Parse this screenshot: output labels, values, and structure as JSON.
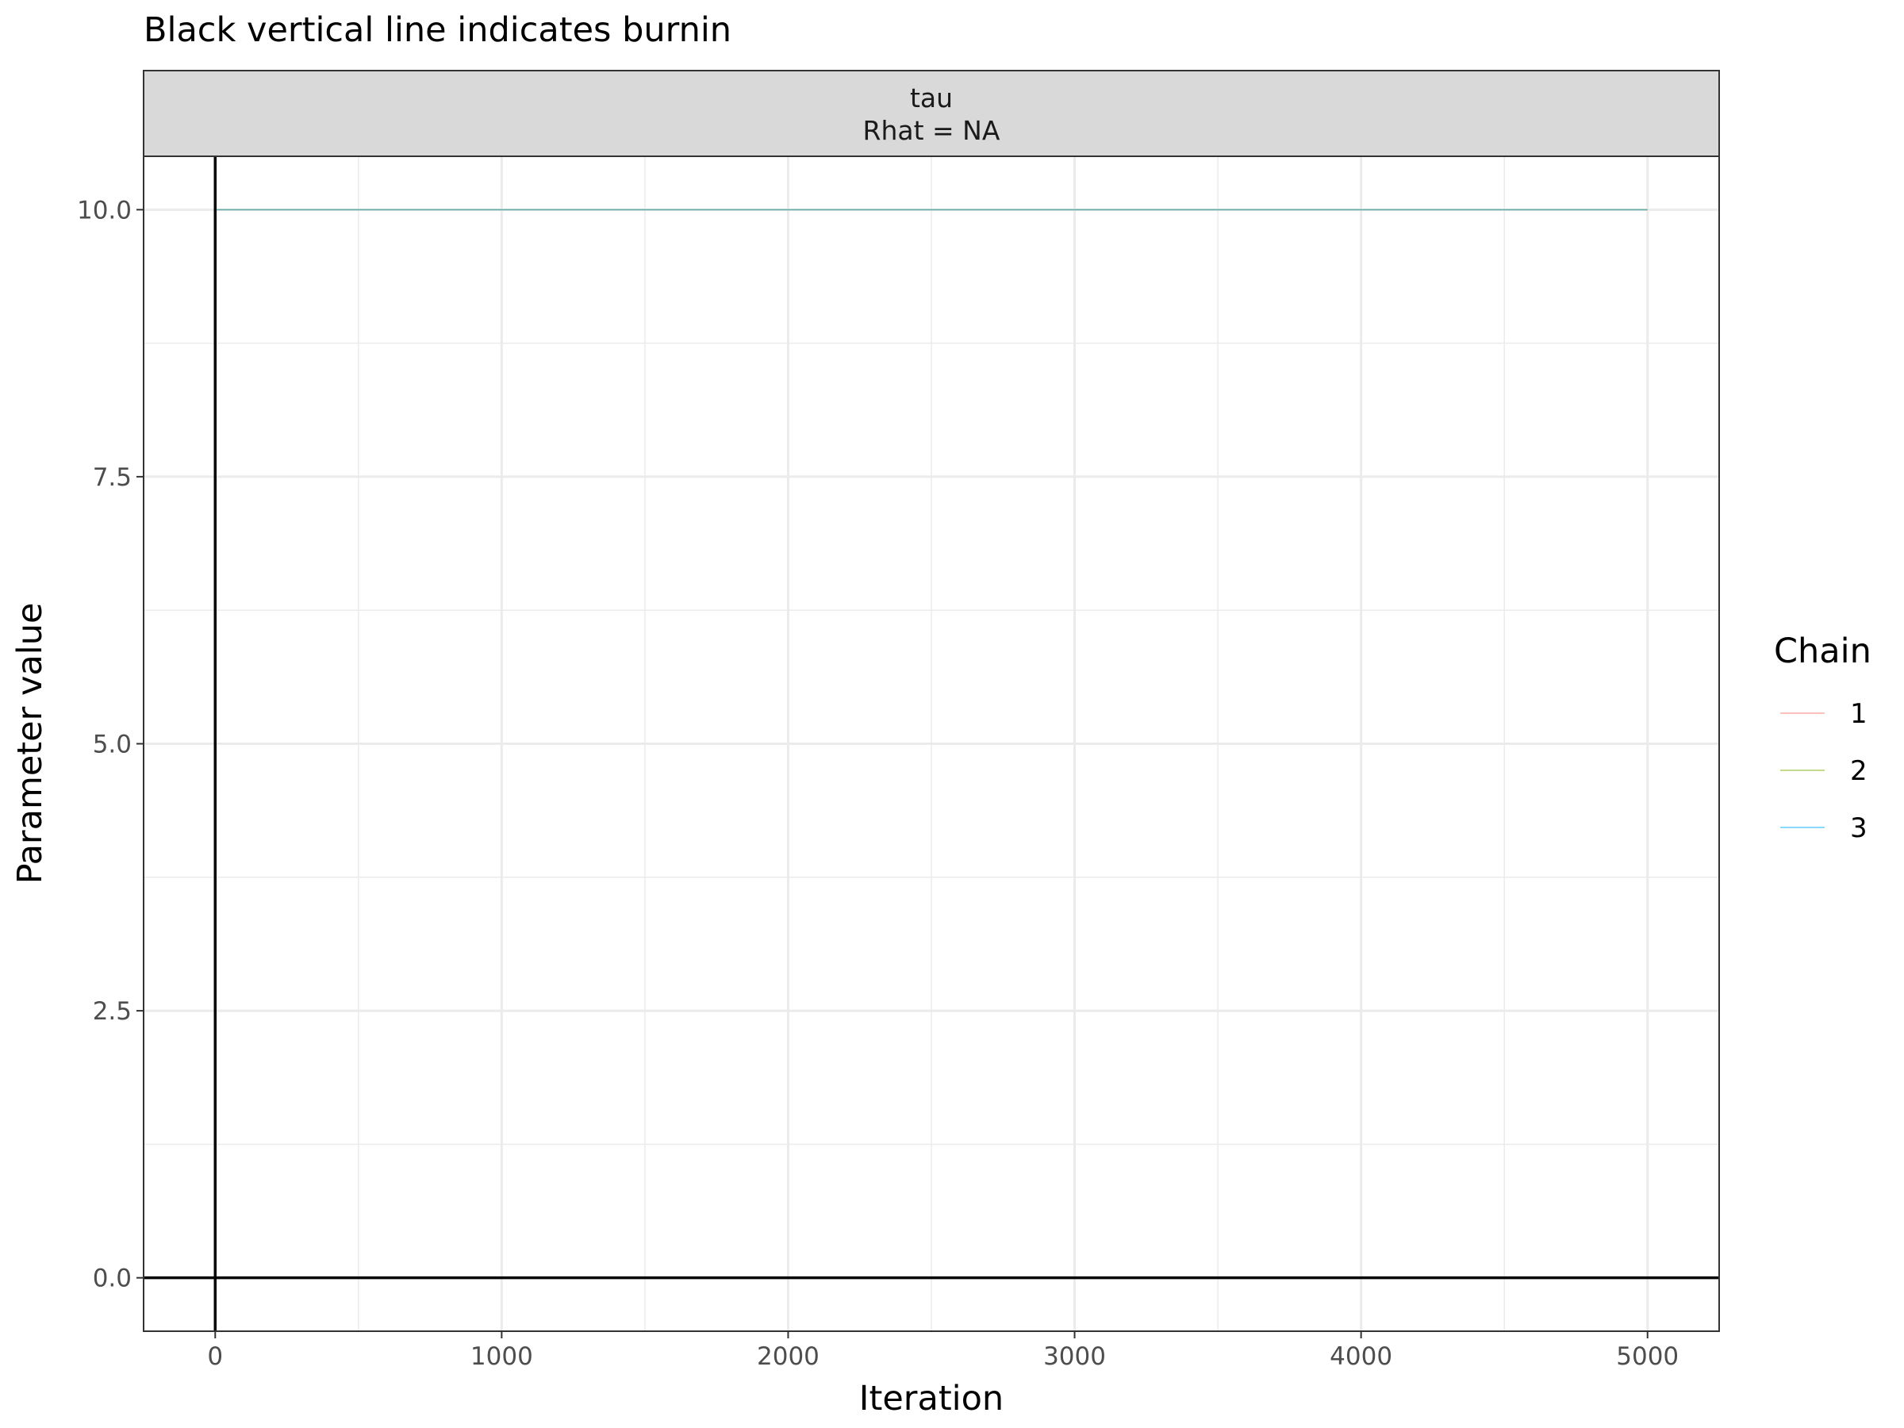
{
  "chart_data": {
    "type": "line",
    "title": "Black vertical line indicates burnin",
    "facet": {
      "label_line1": "tau",
      "label_line2": "Rhat = NA"
    },
    "xlabel": "Iteration",
    "ylabel": "Parameter value",
    "xlim": [
      -250,
      5250
    ],
    "ylim": [
      -0.5,
      10.5
    ],
    "x_ticks": [
      0,
      1000,
      2000,
      3000,
      4000,
      5000
    ],
    "x_tick_labels": [
      "0",
      "1000",
      "2000",
      "3000",
      "4000",
      "5000"
    ],
    "x_minor_ticks": [
      500,
      1500,
      2500,
      3500,
      4500
    ],
    "y_ticks": [
      0,
      2.5,
      5,
      7.5,
      10
    ],
    "y_tick_labels": [
      "0.0",
      "2.5",
      "5.0",
      "7.5",
      "10.0"
    ],
    "y_minor_ticks": [
      1.25,
      3.75,
      6.25,
      8.75
    ],
    "burnin": 0,
    "hline": 0,
    "grid": true,
    "legend": {
      "title": "Chain",
      "placement": "right"
    },
    "series": [
      {
        "name": "1",
        "color": "#F8766D",
        "x": [
          0,
          5000
        ],
        "y": [
          10,
          10
        ]
      },
      {
        "name": "2",
        "color": "#7CAE00",
        "x": [
          0,
          5000
        ],
        "y": [
          10,
          10
        ]
      },
      {
        "name": "3",
        "color": "#00A9FF",
        "x": [
          0,
          5000
        ],
        "y": [
          10,
          10
        ]
      }
    ]
  }
}
